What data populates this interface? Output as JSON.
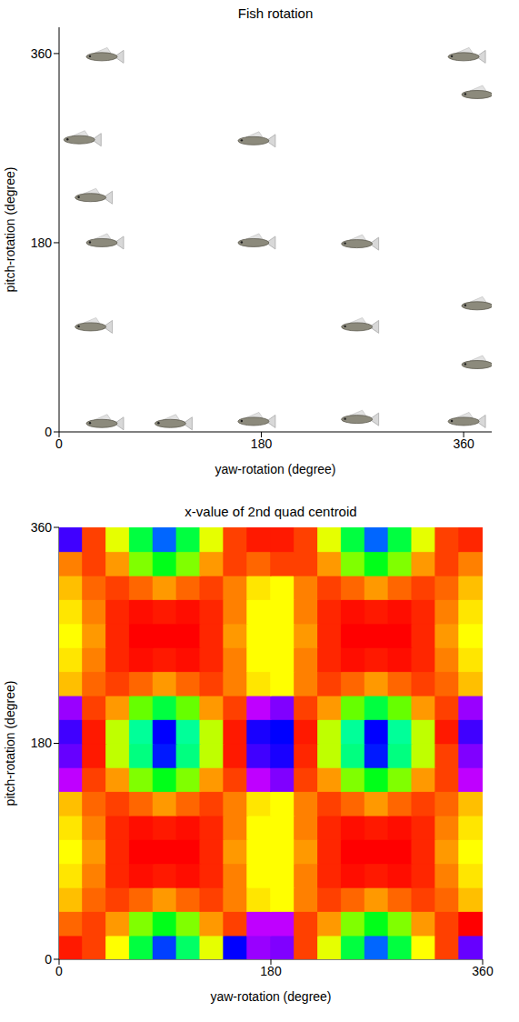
{
  "chart_data": [
    {
      "type": "scatter",
      "title": "Fish rotation",
      "x_label": "yaw-rotation (degree)",
      "y_label": "pitch-rotation (degree)",
      "xlim": [
        0,
        385
      ],
      "ylim": [
        0,
        385
      ],
      "xticks": [
        0,
        180,
        360
      ],
      "yticks": [
        0,
        180,
        360
      ],
      "marker": "fish",
      "color": "#8c8a7c",
      "x": [
        38,
        28,
        38,
        28,
        18,
        38,
        99,
        173,
        173,
        173,
        265,
        265,
        265,
        360,
        372,
        372,
        372,
        360
      ],
      "y": [
        8,
        100,
        180,
        223,
        278,
        357,
        8,
        10,
        180,
        277,
        12,
        100,
        179,
        10,
        64,
        120,
        321,
        357
      ]
    },
    {
      "type": "heatmap",
      "title": "x-value of 2nd quad centroid",
      "x_label": "yaw-rotation (degree)",
      "y_label": "pitch-rotation (degree)",
      "xlim": [
        0,
        360
      ],
      "ylim": [
        0,
        360
      ],
      "xticks": [
        0,
        180,
        360
      ],
      "yticks": [
        0,
        180,
        360
      ],
      "clim": [
        0,
        1
      ],
      "x": [
        10,
        30,
        50,
        70,
        90,
        110,
        130,
        150,
        170,
        190,
        210,
        230,
        250,
        270,
        290,
        310,
        330,
        350
      ],
      "y": [
        10,
        30,
        50,
        70,
        90,
        110,
        130,
        150,
        170,
        190,
        210,
        230,
        250,
        270,
        290,
        310,
        330,
        350
      ],
      "cells": [
        [
          0.02,
          0.05,
          0.2,
          0.45,
          0.75,
          0.48,
          0.22,
          0.8,
          0.92,
          0.9,
          0.05,
          0.22,
          0.45,
          0.72,
          0.45,
          0.2,
          0.05,
          0.88
        ],
        [
          0.08,
          0.05,
          0.12,
          0.3,
          0.42,
          0.3,
          0.12,
          0.05,
          0.95,
          0.95,
          0.05,
          0.12,
          0.3,
          0.42,
          0.3,
          0.12,
          0.05,
          0.0
        ],
        [
          0.15,
          0.08,
          0.05,
          0.08,
          0.12,
          0.08,
          0.05,
          0.1,
          0.18,
          0.2,
          0.1,
          0.05,
          0.08,
          0.12,
          0.08,
          0.05,
          0.08,
          0.15
        ],
        [
          0.18,
          0.1,
          0.03,
          0.01,
          0.02,
          0.01,
          0.03,
          0.1,
          0.2,
          0.2,
          0.1,
          0.03,
          0.01,
          0.02,
          0.01,
          0.03,
          0.1,
          0.18
        ],
        [
          0.2,
          0.12,
          0.03,
          0.0,
          0.0,
          0.0,
          0.03,
          0.12,
          0.2,
          0.2,
          0.12,
          0.03,
          0.0,
          0.0,
          0.0,
          0.03,
          0.12,
          0.2
        ],
        [
          0.18,
          0.1,
          0.03,
          0.01,
          0.02,
          0.01,
          0.03,
          0.1,
          0.2,
          0.2,
          0.1,
          0.03,
          0.01,
          0.02,
          0.01,
          0.03,
          0.1,
          0.18
        ],
        [
          0.15,
          0.08,
          0.05,
          0.08,
          0.12,
          0.08,
          0.05,
          0.1,
          0.18,
          0.2,
          0.1,
          0.05,
          0.08,
          0.12,
          0.08,
          0.05,
          0.08,
          0.15
        ],
        [
          0.95,
          0.05,
          0.12,
          0.3,
          0.42,
          0.3,
          0.12,
          0.05,
          0.95,
          0.9,
          0.05,
          0.12,
          0.3,
          0.42,
          0.3,
          0.12,
          0.05,
          0.95
        ],
        [
          0.88,
          0.02,
          0.25,
          0.5,
          0.78,
          0.5,
          0.25,
          0.02,
          0.85,
          0.82,
          0.03,
          0.25,
          0.5,
          0.78,
          0.5,
          0.25,
          0.05,
          0.9
        ],
        [
          0.85,
          0.02,
          0.25,
          0.52,
          0.8,
          0.52,
          0.25,
          0.02,
          0.82,
          0.8,
          0.02,
          0.25,
          0.52,
          0.8,
          0.52,
          0.25,
          0.02,
          0.85
        ],
        [
          0.92,
          0.05,
          0.12,
          0.32,
          0.45,
          0.32,
          0.12,
          0.05,
          0.95,
          0.9,
          0.05,
          0.12,
          0.32,
          0.45,
          0.32,
          0.12,
          0.05,
          0.92
        ],
        [
          0.15,
          0.08,
          0.05,
          0.08,
          0.12,
          0.08,
          0.05,
          0.1,
          0.18,
          0.2,
          0.1,
          0.05,
          0.08,
          0.12,
          0.08,
          0.05,
          0.08,
          0.15
        ],
        [
          0.18,
          0.1,
          0.03,
          0.01,
          0.02,
          0.01,
          0.03,
          0.1,
          0.2,
          0.2,
          0.1,
          0.03,
          0.01,
          0.02,
          0.01,
          0.03,
          0.1,
          0.18
        ],
        [
          0.2,
          0.12,
          0.03,
          0.0,
          0.0,
          0.0,
          0.03,
          0.12,
          0.2,
          0.2,
          0.12,
          0.03,
          0.0,
          0.0,
          0.0,
          0.03,
          0.12,
          0.2
        ],
        [
          0.18,
          0.1,
          0.03,
          0.01,
          0.02,
          0.01,
          0.03,
          0.1,
          0.2,
          0.2,
          0.1,
          0.03,
          0.01,
          0.02,
          0.01,
          0.03,
          0.1,
          0.18
        ],
        [
          0.15,
          0.08,
          0.05,
          0.08,
          0.12,
          0.08,
          0.05,
          0.1,
          0.18,
          0.2,
          0.1,
          0.05,
          0.08,
          0.12,
          0.08,
          0.05,
          0.08,
          0.15
        ],
        [
          0.1,
          0.05,
          0.12,
          0.3,
          0.42,
          0.3,
          0.12,
          0.05,
          0.08,
          0.05,
          0.05,
          0.12,
          0.3,
          0.42,
          0.3,
          0.12,
          0.05,
          0.1
        ],
        [
          0.85,
          0.05,
          0.22,
          0.45,
          0.72,
          0.45,
          0.22,
          0.05,
          0.02,
          0.02,
          0.05,
          0.22,
          0.45,
          0.72,
          0.45,
          0.22,
          0.05,
          0.03
        ]
      ]
    }
  ]
}
